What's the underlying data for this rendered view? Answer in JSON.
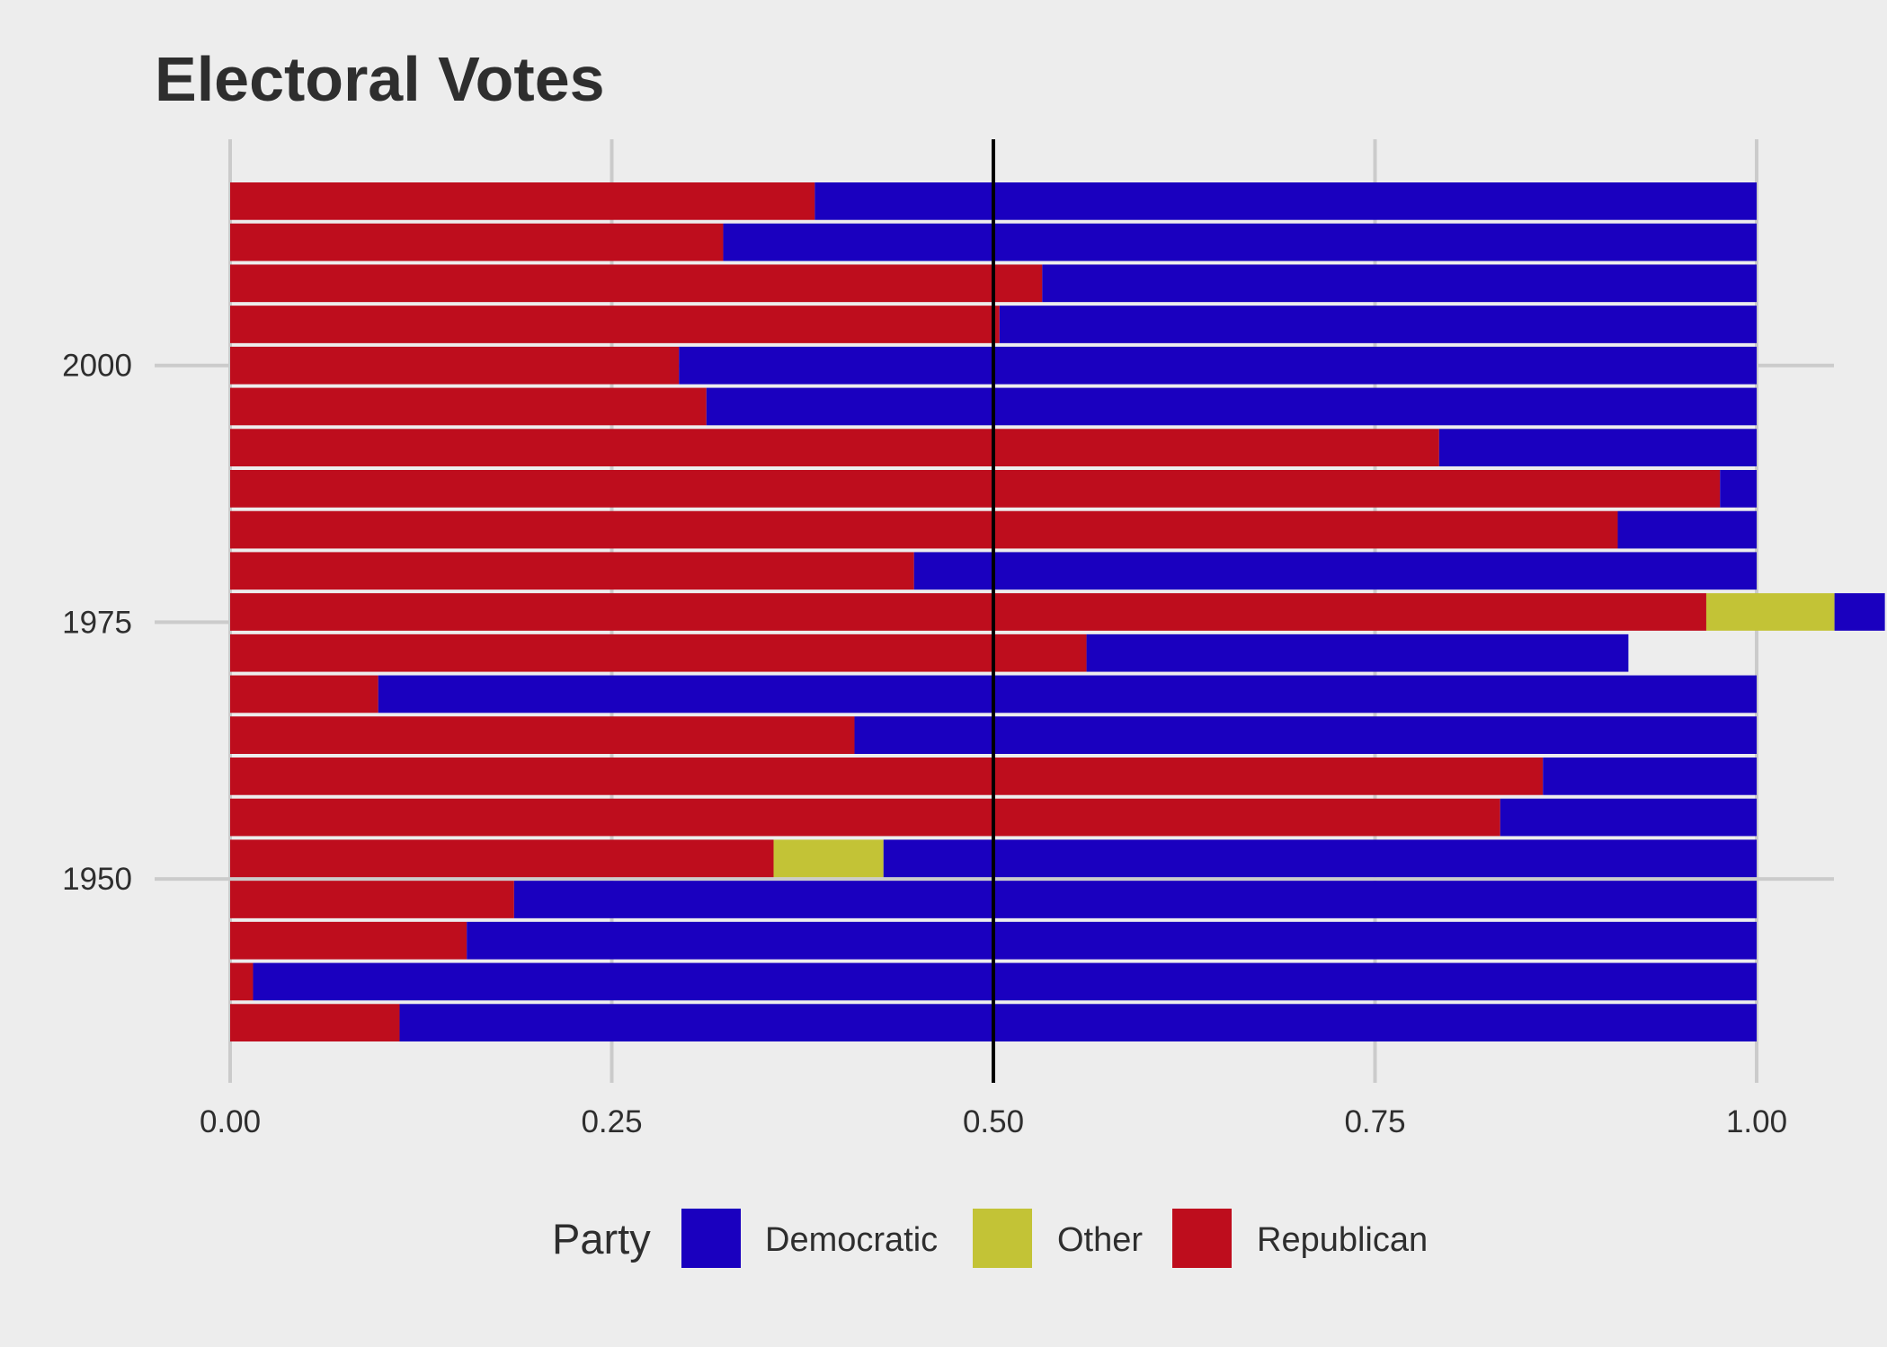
{
  "chart_data": {
    "type": "bar",
    "orientation": "horizontal",
    "stacked": true,
    "title": "Electoral Votes",
    "xlabel": "",
    "ylabel": "",
    "xlim": [
      0,
      1
    ],
    "ylim": [
      1930,
      2018
    ],
    "x_ticks": [
      0,
      0.25,
      0.5,
      0.75,
      1.0
    ],
    "x_tick_labels": [
      "0.00",
      "0.25",
      "0.50",
      "0.75",
      "1.00"
    ],
    "y_ticks": [
      1950,
      1975,
      2000
    ],
    "y_tick_labels": [
      "1950",
      "1975",
      "2000"
    ],
    "reference_line_x": 0.5,
    "grid": true,
    "legend_position": "bottom",
    "legend_title": "Party",
    "categories": [
      1936,
      1940,
      1944,
      1948,
      1952,
      1956,
      1960,
      1964,
      1968,
      1972,
      1976,
      1980,
      1984,
      1988,
      1992,
      1996,
      2000,
      2004,
      2008,
      2012,
      2016
    ],
    "series": [
      {
        "name": "Republican",
        "color": "#be0d1d",
        "values": [
          0.111,
          0.015,
          0.155,
          0.186,
          0.356,
          0.832,
          0.86,
          0.409,
          0.097,
          0.561,
          0.967,
          0.448,
          0.909,
          0.976,
          0.792,
          0.312,
          0.294,
          0.504,
          0.532,
          0.323,
          0.383
        ]
      },
      {
        "name": "Other",
        "color": "#c3c336",
        "values": [
          0,
          0,
          0,
          0,
          0.072,
          0,
          0,
          0,
          0,
          0,
          0.084,
          0,
          0,
          0,
          0,
          0,
          0,
          0,
          0,
          0,
          0
        ]
      },
      {
        "name": "Democratic",
        "color": "#1a00bf",
        "values": [
          0.889,
          0.985,
          0.845,
          0.814,
          0.572,
          0.168,
          0.14,
          0.591,
          0.903,
          0.355,
          0.033,
          0.552,
          0.091,
          0.024,
          0.208,
          0.688,
          0.706,
          0.496,
          0.468,
          0.677,
          0.617
        ]
      }
    ]
  }
}
